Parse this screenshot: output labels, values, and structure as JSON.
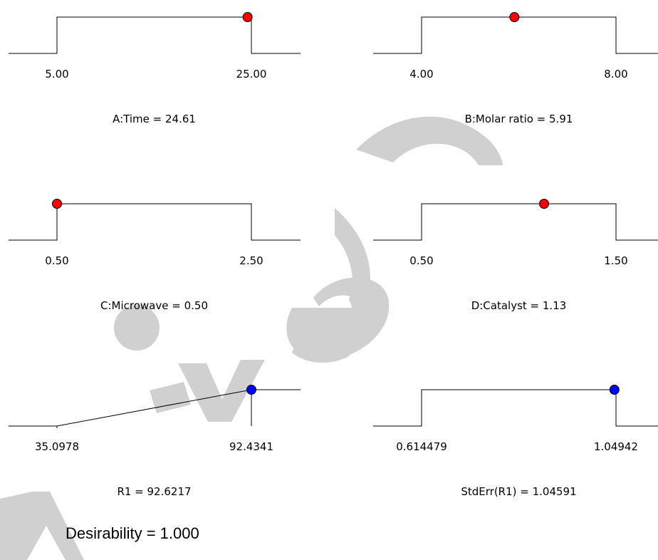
{
  "colors": {
    "factor_marker": "#ff0000",
    "response_marker": "#0000ff",
    "line": "#000000",
    "watermark": "#d0d0d0"
  },
  "chart_data": [
    {
      "type": "line",
      "shape": "flat-top",
      "title": "A:Time = 24.61",
      "tick_labels": [
        "5.00",
        "25.00"
      ],
      "range": [
        5.0,
        25.0
      ],
      "value": 24.61,
      "marker": "factor"
    },
    {
      "type": "line",
      "shape": "flat-top",
      "title": "B:Molar ratio = 5.91",
      "tick_labels": [
        "4.00",
        "8.00"
      ],
      "range": [
        4.0,
        8.0
      ],
      "value": 5.91,
      "marker": "factor"
    },
    {
      "type": "line",
      "shape": "flat-top",
      "title": "C:Microwave = 0.50",
      "tick_labels": [
        "0.50",
        "2.50"
      ],
      "range": [
        0.5,
        2.5
      ],
      "value": 0.5,
      "marker": "factor"
    },
    {
      "type": "line",
      "shape": "flat-top",
      "title": "D:Catalyst = 1.13",
      "tick_labels": [
        "0.50",
        "1.50"
      ],
      "range": [
        0.5,
        1.5
      ],
      "value": 1.13,
      "marker": "factor"
    },
    {
      "type": "line",
      "shape": "ramp-up",
      "title": "R1 = 92.6217",
      "tick_labels": [
        "35.0978",
        "92.4341"
      ],
      "range": [
        35.0978,
        92.4341
      ],
      "value": 92.6217,
      "marker": "response"
    },
    {
      "type": "line",
      "shape": "flat-top",
      "title": "StdErr(R1) = 1.04591",
      "tick_labels": [
        "0.614479",
        "1.04942"
      ],
      "range": [
        0.614479,
        1.04942
      ],
      "value": 1.04591,
      "marker": "response"
    }
  ],
  "summary": {
    "desirability": "Desirability = 1.000"
  }
}
